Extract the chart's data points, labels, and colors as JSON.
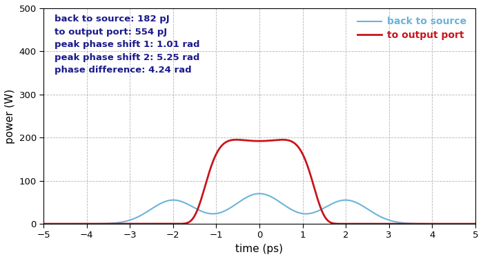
{
  "xlabel": "time (ps)",
  "ylabel": "power (W)",
  "xlim": [
    -5,
    5
  ],
  "ylim": [
    0,
    500
  ],
  "xticks": [
    -5,
    -4,
    -3,
    -2,
    -1,
    0,
    1,
    2,
    3,
    4,
    5
  ],
  "yticks": [
    0,
    100,
    200,
    300,
    400,
    500
  ],
  "blue_color": "#6ab4d8",
  "red_color": "#c8151a",
  "annotation_lines": [
    "back to source: 182 pJ",
    "to output port: 554 pJ",
    "peak phase shift 1: 1.01 rad",
    "peak phase shift 2: 5.25 rad",
    "phase difference: 4.24 rad"
  ],
  "legend_labels": [
    "back to source",
    "to output port"
  ],
  "annotation_color": "#1a1a8c",
  "legend_blue_color": "#6ab4d8",
  "legend_red_color": "#c8151a",
  "background_color": "#ffffff",
  "grid_color": "#aaaaaa"
}
